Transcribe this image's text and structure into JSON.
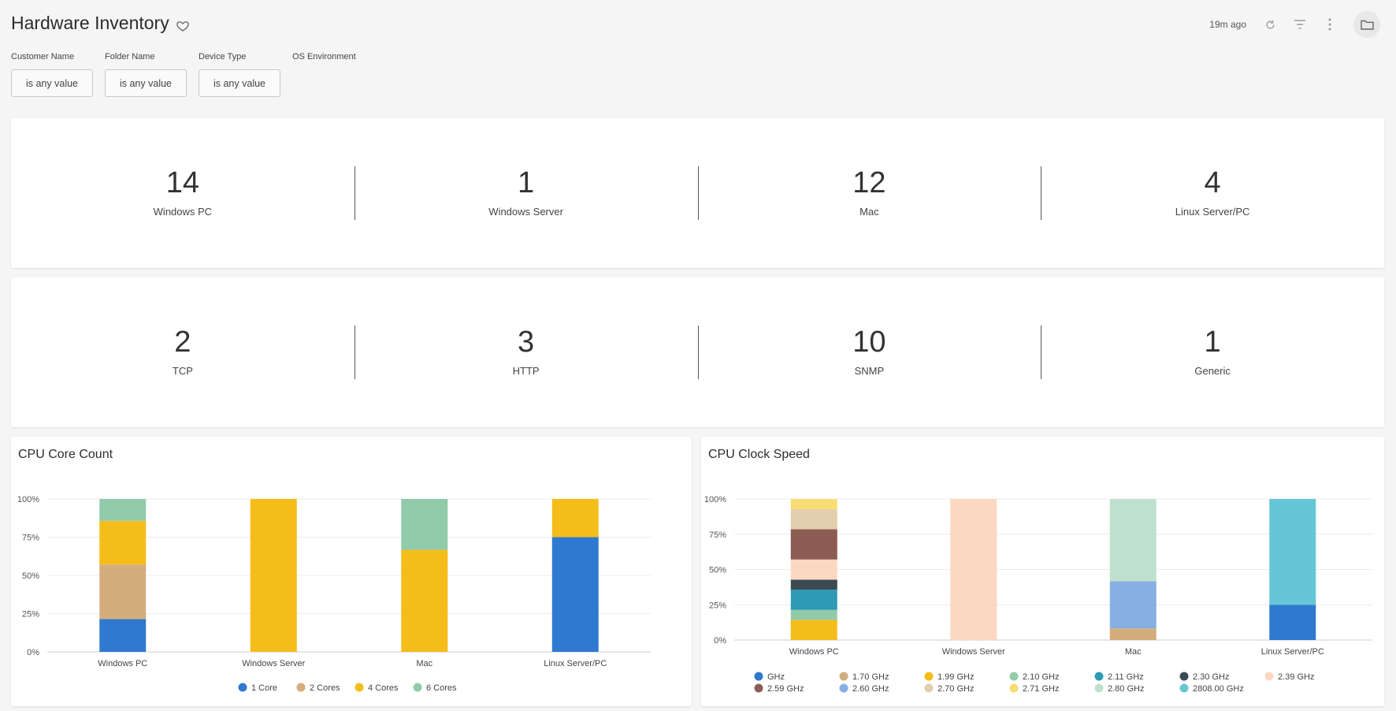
{
  "header": {
    "title": "Hardware Inventory",
    "updated": "19m ago"
  },
  "filters": [
    {
      "label": "Customer Name",
      "value": "is any value"
    },
    {
      "label": "Folder Name",
      "value": "is any value"
    },
    {
      "label": "Device Type",
      "value": "is any value"
    },
    {
      "label": "OS Environment",
      "value": ""
    }
  ],
  "device_kpis": [
    {
      "value": "14",
      "label": "Windows PC"
    },
    {
      "value": "1",
      "label": "Windows Server"
    },
    {
      "value": "12",
      "label": "Mac"
    },
    {
      "value": "4",
      "label": "Linux Server/PC"
    }
  ],
  "monitor_kpis": [
    {
      "value": "2",
      "label": "TCP"
    },
    {
      "value": "3",
      "label": "HTTP"
    },
    {
      "value": "10",
      "label": "SNMP"
    },
    {
      "value": "1",
      "label": "Generic"
    }
  ],
  "chart_data": [
    {
      "type": "bar",
      "title": "CPU Core Count",
      "stacked": "percent",
      "categories": [
        "Windows PC",
        "Windows Server",
        "Mac",
        "Linux Server/PC"
      ],
      "yticks": [
        "0%",
        "25%",
        "50%",
        "75%",
        "100%"
      ],
      "ylim": [
        0,
        100
      ],
      "legend_position": "bottom",
      "series": [
        {
          "name": "1 Core",
          "color": "#2f7ad0",
          "values": [
            21.4,
            0,
            0,
            75
          ]
        },
        {
          "name": "2 Cores",
          "color": "#d4ad7c",
          "values": [
            35.7,
            0,
            0,
            0
          ]
        },
        {
          "name": "4 Cores",
          "color": "#f5bd1a",
          "values": [
            28.6,
            100,
            66.7,
            25
          ]
        },
        {
          "name": "6 Cores",
          "color": "#91cbaa",
          "values": [
            14.3,
            0,
            33.3,
            0
          ]
        }
      ]
    },
    {
      "type": "bar",
      "title": "CPU Clock Speed",
      "stacked": "percent",
      "categories": [
        "Windows PC",
        "Windows Server",
        "Mac",
        "Linux Server/PC"
      ],
      "yticks": [
        "0%",
        "25%",
        "50%",
        "75%",
        "100%"
      ],
      "ylim": [
        0,
        100
      ],
      "legend_position": "bottom",
      "series": [
        {
          "name": "GHz",
          "color": "#2f7ad0",
          "values": [
            0,
            0,
            0,
            25
          ]
        },
        {
          "name": "1.70 GHz",
          "color": "#d4ad7c",
          "values": [
            0,
            0,
            8.3,
            0
          ]
        },
        {
          "name": "1.99 GHz",
          "color": "#f5bd1a",
          "values": [
            14.3,
            0,
            0,
            0
          ]
        },
        {
          "name": "2.10 GHz",
          "color": "#91cbaa",
          "values": [
            7.1,
            0,
            0,
            0
          ]
        },
        {
          "name": "2.11 GHz",
          "color": "#2e9ab3",
          "values": [
            14.3,
            0,
            0,
            0
          ]
        },
        {
          "name": "2.30 GHz",
          "color": "#3b4a52",
          "values": [
            7.1,
            0,
            0,
            0
          ]
        },
        {
          "name": "2.39 GHz",
          "color": "#fdd8c0",
          "values": [
            14.3,
            100,
            0,
            0
          ]
        },
        {
          "name": "2.59 GHz",
          "color": "#8d5c54",
          "values": [
            21.4,
            0,
            0,
            0
          ]
        },
        {
          "name": "2.60 GHz",
          "color": "#86aee2",
          "values": [
            0,
            0,
            33.3,
            0
          ]
        },
        {
          "name": "2.70 GHz",
          "color": "#e2cfae",
          "values": [
            14.3,
            0,
            0,
            0
          ]
        },
        {
          "name": "2.71 GHz",
          "color": "#f8dd72",
          "values": [
            7.1,
            0,
            0,
            0
          ]
        },
        {
          "name": "2.80 GHz",
          "color": "#bfe0cc",
          "values": [
            0,
            0,
            58.3,
            0
          ]
        },
        {
          "name": "2808.00 GHz",
          "color": "#66c6d7",
          "values": [
            0,
            0,
            0,
            75
          ]
        }
      ]
    }
  ]
}
